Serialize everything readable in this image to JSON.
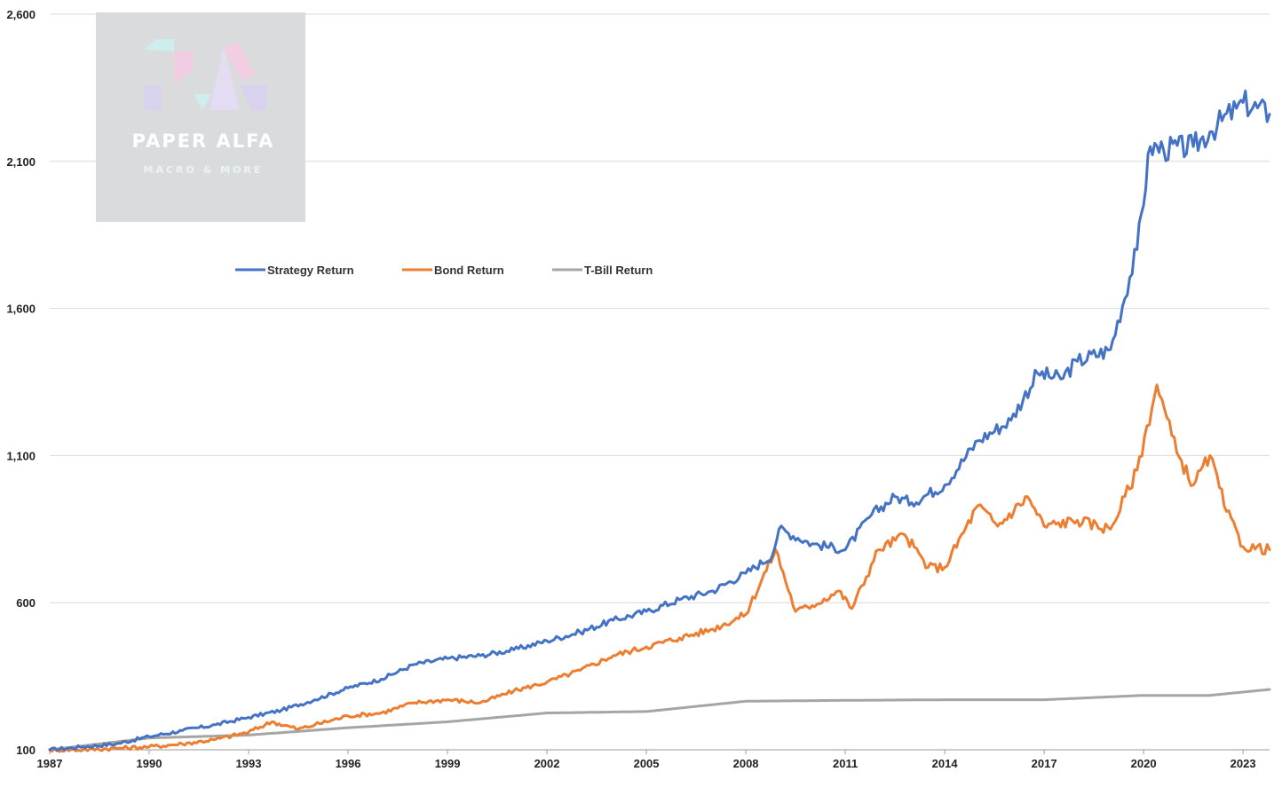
{
  "chart_data": {
    "type": "line",
    "title": "",
    "xlabel": "",
    "ylabel": "",
    "xlim": [
      1987,
      2023.8
    ],
    "ylim": [
      100,
      2600
    ],
    "x_ticks": [
      "1987",
      "1990",
      "1993",
      "1996",
      "1999",
      "2002",
      "2005",
      "2008",
      "2011",
      "2014",
      "2017",
      "2020",
      "2023"
    ],
    "y_ticks": [
      "100",
      "600",
      "1,100",
      "1,600",
      "2,100",
      "2,600"
    ],
    "legend_position": "top-left",
    "grid": true,
    "series": [
      {
        "name": "Strategy Return",
        "color": "#4472C4",
        "points": [
          [
            1987,
            100
          ],
          [
            1988,
            110
          ],
          [
            1989,
            120
          ],
          [
            1990,
            145
          ],
          [
            1991,
            165
          ],
          [
            1992,
            185
          ],
          [
            1993,
            210
          ],
          [
            1994,
            235
          ],
          [
            1995,
            270
          ],
          [
            1996,
            310
          ],
          [
            1997,
            340
          ],
          [
            1998,
            390
          ],
          [
            1999,
            410
          ],
          [
            2000,
            420
          ],
          [
            2001,
            440
          ],
          [
            2002,
            470
          ],
          [
            2003,
            500
          ],
          [
            2004,
            540
          ],
          [
            2005,
            570
          ],
          [
            2006,
            610
          ],
          [
            2007,
            640
          ],
          [
            2008,
            700
          ],
          [
            2008.8,
            760
          ],
          [
            2009,
            850
          ],
          [
            2010,
            800
          ],
          [
            2011,
            780
          ],
          [
            2011.8,
            900
          ],
          [
            2012.5,
            960
          ],
          [
            2013,
            940
          ],
          [
            2014,
            1000
          ],
          [
            2015,
            1150
          ],
          [
            2016,
            1220
          ],
          [
            2016.8,
            1380
          ],
          [
            2017.5,
            1360
          ],
          [
            2018,
            1420
          ],
          [
            2019,
            1460
          ],
          [
            2019.8,
            1800
          ],
          [
            2020.2,
            2150
          ],
          [
            2020.6,
            2140
          ],
          [
            2021.5,
            2150
          ],
          [
            2022,
            2200
          ],
          [
            2022.8,
            2280
          ],
          [
            2023,
            2300
          ],
          [
            2023.8,
            2260
          ]
        ]
      },
      {
        "name": "Bond Return",
        "color": "#ED7D31",
        "points": [
          [
            1987,
            100
          ],
          [
            1988,
            100
          ],
          [
            1989,
            105
          ],
          [
            1990,
            110
          ],
          [
            1991,
            120
          ],
          [
            1992,
            135
          ],
          [
            1993,
            160
          ],
          [
            1993.7,
            195
          ],
          [
            1994.5,
            170
          ],
          [
            1995,
            185
          ],
          [
            1996,
            215
          ],
          [
            1997,
            225
          ],
          [
            1998,
            260
          ],
          [
            1999,
            270
          ],
          [
            2000,
            260
          ],
          [
            2001,
            300
          ],
          [
            2002,
            330
          ],
          [
            2003,
            370
          ],
          [
            2004,
            420
          ],
          [
            2005,
            450
          ],
          [
            2006,
            480
          ],
          [
            2007,
            510
          ],
          [
            2008,
            560
          ],
          [
            2008.9,
            780
          ],
          [
            2009.5,
            570
          ],
          [
            2010,
            590
          ],
          [
            2010.8,
            640
          ],
          [
            2011.2,
            580
          ],
          [
            2012,
            780
          ],
          [
            2012.8,
            830
          ],
          [
            2013.5,
            720
          ],
          [
            2014,
            720
          ],
          [
            2015,
            930
          ],
          [
            2015.6,
            860
          ],
          [
            2016.5,
            960
          ],
          [
            2017,
            860
          ],
          [
            2018,
            880
          ],
          [
            2019,
            850
          ],
          [
            2019.8,
            1050
          ],
          [
            2020.4,
            1340
          ],
          [
            2021,
            1110
          ],
          [
            2021.5,
            1000
          ],
          [
            2022,
            1100
          ],
          [
            2022.5,
            910
          ],
          [
            2023,
            790
          ],
          [
            2023.8,
            780
          ]
        ]
      },
      {
        "name": "T-Bill Return",
        "color": "#A5A5A5",
        "points": [
          [
            1987,
            100
          ],
          [
            1990,
            140
          ],
          [
            1993,
            150
          ],
          [
            1996,
            175
          ],
          [
            1999,
            195
          ],
          [
            2002,
            225
          ],
          [
            2005,
            230
          ],
          [
            2008,
            265
          ],
          [
            2011,
            268
          ],
          [
            2014,
            270
          ],
          [
            2017,
            270
          ],
          [
            2020,
            285
          ],
          [
            2022,
            285
          ],
          [
            2023.8,
            305
          ]
        ]
      }
    ]
  },
  "watermark": {
    "title": "PAPER ALFA",
    "subtitle": "MACRO & MORE"
  }
}
